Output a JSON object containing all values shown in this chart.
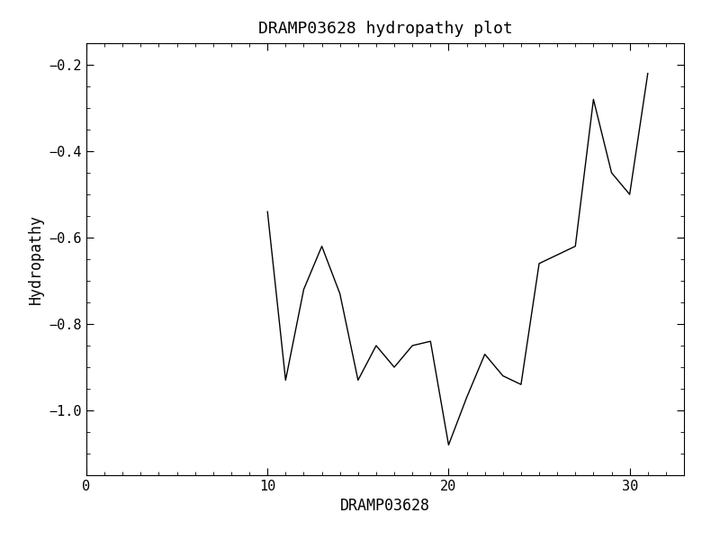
{
  "title": "DRAMP03628 hydropathy plot",
  "xlabel": "DRAMP03628",
  "ylabel": "Hydropathy",
  "x": [
    10,
    11,
    12,
    13,
    14,
    15,
    16,
    17,
    18,
    19,
    20,
    21,
    22,
    23,
    24,
    25,
    26,
    27,
    28,
    29,
    30,
    31
  ],
  "y": [
    -0.54,
    -0.93,
    -0.72,
    -0.62,
    -0.73,
    -0.93,
    -0.85,
    -0.9,
    -0.85,
    -0.84,
    -1.08,
    -0.97,
    -0.87,
    -0.92,
    -0.94,
    -0.66,
    -0.64,
    -0.62,
    -0.28,
    -0.45,
    -0.5,
    -0.22
  ],
  "xlim": [
    0,
    33
  ],
  "ylim": [
    -1.15,
    -0.15
  ],
  "xticks": [
    0,
    10,
    20,
    30
  ],
  "yticks": [
    -1.0,
    -0.8,
    -0.6,
    -0.4,
    -0.2
  ],
  "line_color": "#000000",
  "line_width": 1.0,
  "bg_color": "#ffffff",
  "font_family": "DejaVu Sans Mono",
  "title_fontsize": 13,
  "label_fontsize": 12,
  "tick_fontsize": 11
}
